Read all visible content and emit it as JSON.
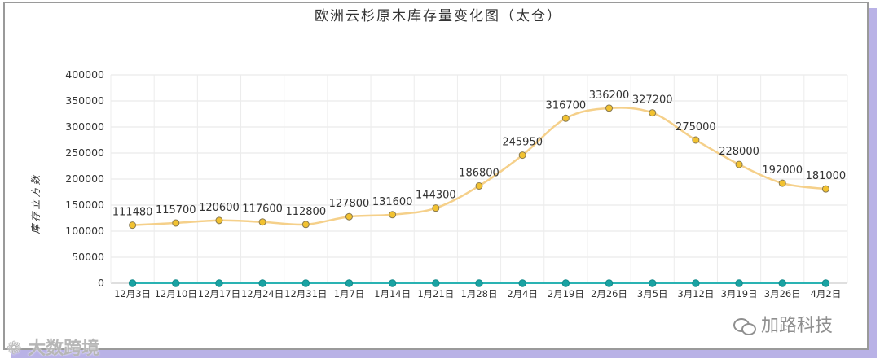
{
  "chart_data": {
    "type": "line",
    "title": "欧洲云杉原木库存量变化图（太仓）",
    "xlabel": "",
    "ylabel": "库存立方数",
    "categories": [
      "12月3日",
      "12月10日",
      "12月17日",
      "12月24日",
      "12月31日",
      "1月7日",
      "1月14日",
      "1月21日",
      "1月28日",
      "2月4日",
      "2月19日",
      "2月26日",
      "3月5日",
      "3月12日",
      "3月19日",
      "3月26日",
      "4月2日"
    ],
    "series": [
      {
        "name": "",
        "color": "#f5d08a",
        "marker_color": "#f2c230",
        "values": [
          111480,
          115700,
          120600,
          117600,
          112800,
          127800,
          131600,
          144300,
          186800,
          245950,
          316700,
          336200,
          327200,
          275000,
          228000,
          192000,
          181000
        ],
        "data_labels": true
      },
      {
        "name": "",
        "color": "#2ab3b3",
        "marker_color": "#1aa3a3",
        "values": [
          0,
          0,
          0,
          0,
          0,
          0,
          0,
          0,
          0,
          0,
          0,
          0,
          0,
          0,
          0,
          0,
          0
        ],
        "data_labels": false
      }
    ],
    "yticks": [
      "0",
      "50000",
      "100000",
      "150000",
      "200000",
      "250000",
      "300000",
      "350000",
      "400000"
    ],
    "ylim": [
      0,
      400000
    ],
    "grid": true,
    "legend": "none"
  },
  "watermarks": {
    "left": "大数跨境",
    "right": "加路科技",
    "right_icon": "wechat-icon"
  }
}
